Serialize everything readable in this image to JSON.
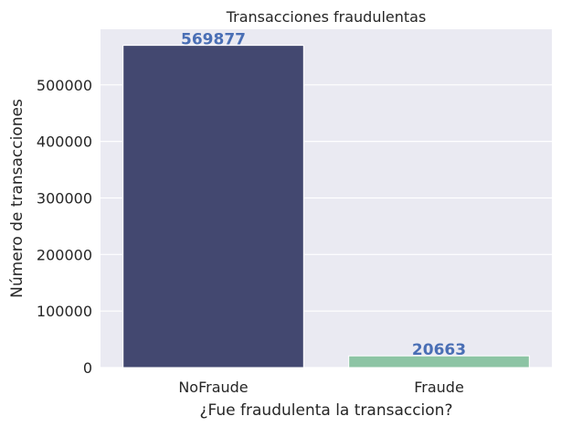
{
  "chart_data": {
    "type": "bar",
    "title": "Transacciones fraudulentas",
    "xlabel": "¿Fue fraudulenta la transaccion?",
    "ylabel": "Número de transacciones",
    "categories": [
      "NoFraude",
      "Fraude"
    ],
    "values": [
      569877,
      20663
    ],
    "data_labels": [
      "569877",
      "20663"
    ],
    "ylim": [
      0,
      598371
    ],
    "yticks": [
      0,
      100000,
      200000,
      300000,
      400000,
      500000
    ],
    "ytick_labels": [
      "0",
      "100000",
      "200000",
      "300000",
      "400000",
      "500000"
    ],
    "grid": true,
    "colors": {
      "background": "#eaeaf2",
      "grid": "#ffffff",
      "bars": [
        "#434870",
        "#8cc4a4"
      ],
      "data_label": "#4a6fb5"
    }
  }
}
